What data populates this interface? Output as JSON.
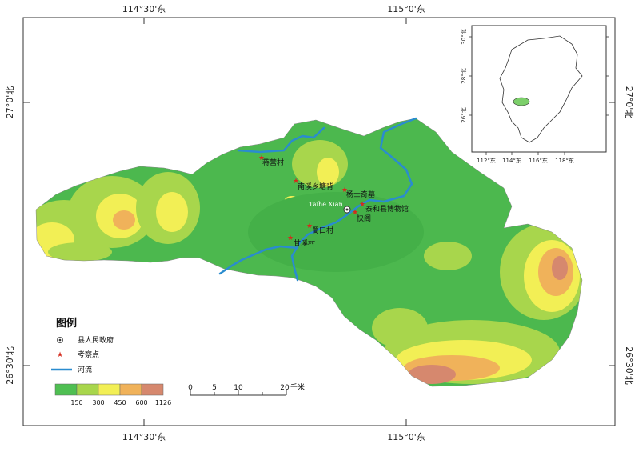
{
  "axis": {
    "top_labels": [
      "114°30'东",
      "115°0'东"
    ],
    "bottom_labels": [
      "114°30'东",
      "115°0'东"
    ],
    "left_labels": [
      "27°0'北",
      "26°30'北"
    ],
    "right_labels": [
      "27°0'北",
      "26°30'北"
    ]
  },
  "county_label": "Taihe Xian",
  "sites": [
    {
      "name": "蒋营村"
    },
    {
      "name": "南溪乡塘背"
    },
    {
      "name": "杨士奇墓"
    },
    {
      "name": "泰和县博物馆"
    },
    {
      "name": "快阁"
    },
    {
      "name": "蜀口村"
    },
    {
      "name": "甘溪村"
    }
  ],
  "inset": {
    "x_labels": [
      "112°东",
      "114°东",
      "116°东",
      "118°东"
    ],
    "y_labels": [
      "30°北",
      "28°北",
      "26°北"
    ]
  },
  "legend": {
    "title": "图例",
    "items": [
      {
        "label": "县人民政府",
        "icon": "county-seat-icon"
      },
      {
        "label": "考察点",
        "icon": "star-icon",
        "color": "#d42a1c"
      },
      {
        "label": "河流",
        "icon": "river-line-icon",
        "color": "#2a8ccf"
      }
    ],
    "elevation_colors": [
      "#4fbf52",
      "#a8d64c",
      "#f2ef55",
      "#f0b25a",
      "#d6886e"
    ],
    "elevation_breaks": [
      "150",
      "300",
      "450",
      "600",
      "1126"
    ]
  },
  "scale_bar": {
    "ticks": [
      "0",
      "5",
      "10",
      "20"
    ],
    "unit": "千米"
  },
  "colors": {
    "river": "#2a8ccf",
    "site_marker": "#d42a1c"
  }
}
